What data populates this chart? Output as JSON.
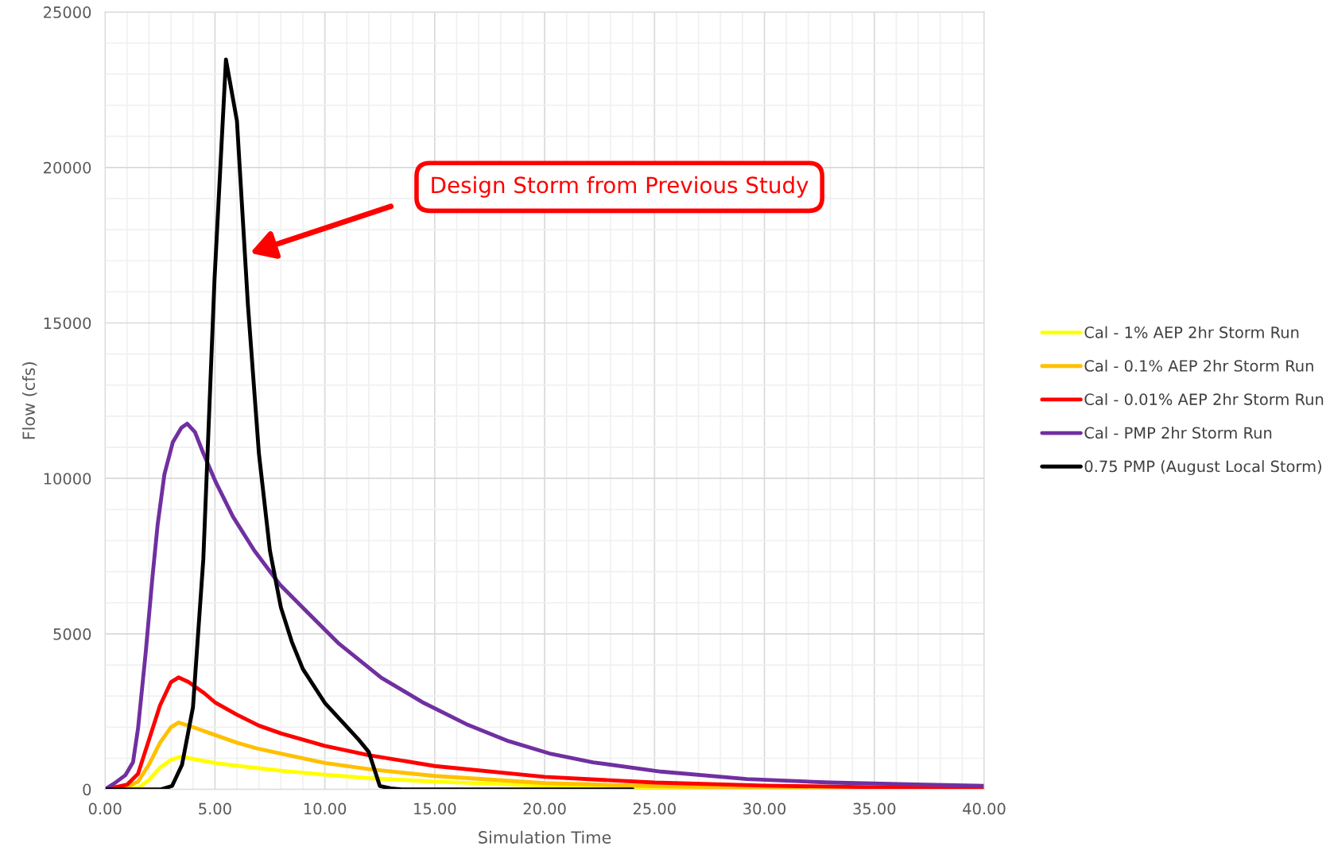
{
  "chart_data": {
    "type": "line",
    "xlabel": "Simulation Time",
    "ylabel": "Flow (cfs)",
    "xlim": [
      0,
      40
    ],
    "ylim": [
      0,
      25000
    ],
    "xticks": [
      {
        "value": 0,
        "label": "0.00"
      },
      {
        "value": 5,
        "label": "5.00"
      },
      {
        "value": 10,
        "label": "10.00"
      },
      {
        "value": 15,
        "label": "15.00"
      },
      {
        "value": 20,
        "label": "20.00"
      },
      {
        "value": 25,
        "label": "25.00"
      },
      {
        "value": 30,
        "label": "30.00"
      },
      {
        "value": 35,
        "label": "35.00"
      },
      {
        "value": 40,
        "label": "40.00"
      }
    ],
    "yticks": [
      0,
      5000,
      10000,
      15000,
      20000,
      25000
    ],
    "grid": true,
    "legend": "right",
    "marker": "none",
    "line_style": "solid",
    "annotations": [
      "Design Storm from Previous Study"
    ],
    "series": [
      {
        "name": "Cal - 1% AEP 2hr Storm Run",
        "color": "#ffff00",
        "x": [
          0,
          1.5,
          2.0,
          2.5,
          3.0,
          3.45,
          4.0,
          5.0,
          6.0,
          7.0,
          8.0,
          10.0,
          12.0,
          15.0,
          20.0,
          25.0,
          30.0,
          40.0
        ],
        "values": [
          0,
          50,
          300,
          700,
          950,
          1050,
          980,
          850,
          760,
          680,
          600,
          470,
          360,
          250,
          120,
          60,
          30,
          0
        ]
      },
      {
        "name": "Cal - 0.1% AEP 2hr Storm Run",
        "color": "#ffc000",
        "x": [
          0,
          1.0,
          1.5,
          2.0,
          2.5,
          3.0,
          3.35,
          4.0,
          5.0,
          6.0,
          7.0,
          8.0,
          10.0,
          12.0,
          15.0,
          20.0,
          25.0,
          30.0,
          40.0
        ],
        "values": [
          0,
          80,
          250,
          800,
          1500,
          2000,
          2150,
          2000,
          1750,
          1500,
          1300,
          1150,
          850,
          650,
          430,
          200,
          100,
          50,
          10
        ]
      },
      {
        "name": "Cal - 0.01% AEP 2hr Storm Run",
        "color": "#ff0000",
        "x": [
          0,
          1.0,
          1.5,
          2.0,
          2.5,
          3.0,
          3.35,
          3.8,
          4.5,
          5.0,
          6.0,
          7.0,
          8.0,
          10.0,
          12.0,
          15.0,
          20.0,
          25.0,
          30.0,
          35.0,
          40.0
        ],
        "values": [
          0,
          150,
          500,
          1600,
          2700,
          3450,
          3600,
          3450,
          3100,
          2800,
          2400,
          2050,
          1800,
          1400,
          1100,
          750,
          400,
          220,
          120,
          70,
          30
        ]
      },
      {
        "name": "Cal - PMP 2hr Storm Run",
        "color": "#7030a0",
        "x": [
          0,
          0.42,
          0.93,
          1.27,
          1.5,
          1.85,
          2.16,
          2.39,
          2.7,
          3.08,
          3.47,
          3.74,
          4.09,
          4.47,
          5.05,
          5.82,
          6.79,
          7.95,
          9.1,
          10.65,
          12.57,
          14.5,
          16.43,
          18.36,
          20.29,
          22.2,
          25.3,
          29.2,
          33.0,
          36.9,
          40.0
        ],
        "values": [
          0,
          190,
          460,
          870,
          1960,
          4410,
          6860,
          8500,
          10130,
          11160,
          11630,
          11760,
          11490,
          10810,
          9860,
          8770,
          7680,
          6590,
          5770,
          4680,
          3590,
          2780,
          2100,
          1550,
          1140,
          870,
          570,
          330,
          220,
          160,
          110
        ]
      },
      {
        "name": "0.75 PMP (August Local Storm)",
        "color": "#000000",
        "x": [
          0,
          2.55,
          3.05,
          3.5,
          4.0,
          4.47,
          4.98,
          5.5,
          6.0,
          6.5,
          7.0,
          7.5,
          8.0,
          8.5,
          9.0,
          10.0,
          11.0,
          11.5,
          12.0,
          12.5,
          13.0,
          13.5,
          24.0
        ],
        "values": [
          0,
          0,
          110,
          790,
          2640,
          7400,
          16400,
          23470,
          21500,
          15580,
          10800,
          7680,
          5850,
          4740,
          3870,
          2780,
          2010,
          1630,
          1200,
          110,
          30,
          0,
          0
        ]
      }
    ]
  }
}
